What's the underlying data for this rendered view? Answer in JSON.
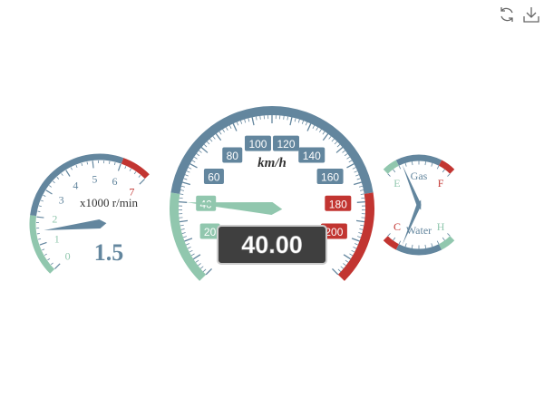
{
  "toolbox": {
    "restore_icon": "restore-icon",
    "save_icon": "download-icon"
  },
  "chart_data": [
    {
      "type": "gauge",
      "id": "speed",
      "min": 0,
      "max": 220,
      "value": 40,
      "unit": "km/h",
      "detail_text": "40.00",
      "tick_labels": [
        "20",
        "40",
        "60",
        "80",
        "100",
        "120",
        "140",
        "160",
        "180",
        "200"
      ],
      "tick_values": [
        20,
        40,
        60,
        80,
        100,
        120,
        140,
        160,
        180,
        200
      ],
      "axis_bands": [
        {
          "to": 0.2,
          "color": "#91c7ae"
        },
        {
          "to": 0.8,
          "color": "#63869e"
        },
        {
          "to": 1.0,
          "color": "#c23531"
        }
      ],
      "pointer_color": "#91c7ae"
    },
    {
      "type": "gauge",
      "id": "rpm",
      "min": 0,
      "max": 7,
      "value": 1.5,
      "unit": "x1000 r/min",
      "detail_text": "1.5",
      "tick_labels": [
        "0",
        "1",
        "2",
        "3",
        "4",
        "5",
        "6",
        "7"
      ],
      "tick_values": [
        0,
        1,
        2,
        3,
        4,
        5,
        6,
        7
      ],
      "axis_bands": [
        {
          "to": 0.29,
          "color": "#91c7ae"
        },
        {
          "to": 0.86,
          "color": "#63869e"
        },
        {
          "to": 1.0,
          "color": "#c23531"
        }
      ],
      "pointer_color": "#63869e"
    },
    {
      "type": "gauge",
      "id": "fuel",
      "min": 0,
      "max": 2,
      "value": 0.5,
      "unit": "Gas",
      "tick_labels": [
        "E",
        "F"
      ],
      "tick_values": [
        0,
        2
      ],
      "axis_bands": [
        {
          "to": 0.2,
          "color": "#91c7ae"
        },
        {
          "to": 0.8,
          "color": "#63869e"
        },
        {
          "to": 1.0,
          "color": "#c23531"
        }
      ],
      "pointer_color": "#63869e"
    },
    {
      "type": "gauge",
      "id": "water",
      "min": 0,
      "max": 2,
      "value": 0.5,
      "unit": "Water",
      "tick_labels": [
        "C",
        "H"
      ],
      "tick_values": [
        0,
        2
      ],
      "axis_bands": [
        {
          "to": 0.2,
          "color": "#c23531"
        },
        {
          "to": 0.8,
          "color": "#63869e"
        },
        {
          "to": 1.0,
          "color": "#91c7ae"
        }
      ],
      "pointer_color": "#63869e"
    }
  ]
}
